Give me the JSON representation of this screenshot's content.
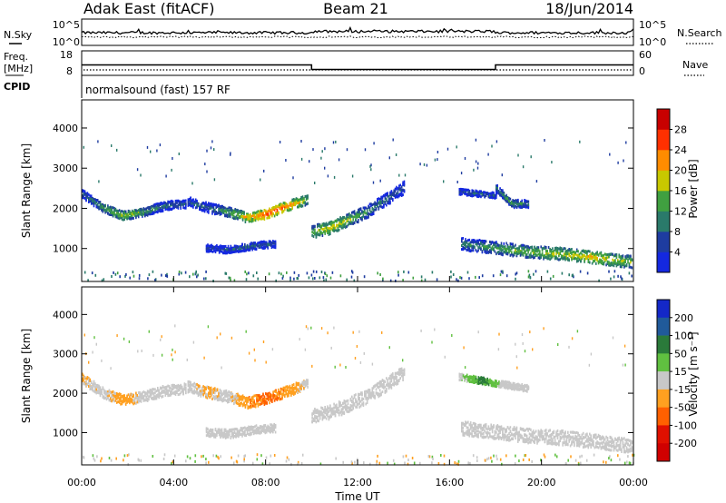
{
  "header": {
    "station": "Adak East (fitACF)",
    "beam": "Beam 21",
    "date": "18/Jun/2014"
  },
  "summary": {
    "nsky_label": "N.Sky",
    "nsearch_label": "N.Search",
    "freq_label": "Freq.",
    "freq_unit": "[MHz]",
    "nave_label": "Nave",
    "cpid_label": "CPID",
    "cpid_text": "normalsound (fast) 157 RF",
    "noise_ticks": [
      "10^5",
      "10^0"
    ],
    "freq_ticks": [
      "18",
      "8"
    ],
    "nave_ticks": [
      "60",
      "0"
    ],
    "freq_segments": [
      {
        "start_h": 0,
        "end_h": 10,
        "mhz": 12.2
      },
      {
        "start_h": 10,
        "end_h": 18,
        "mhz": 10.2
      },
      {
        "start_h": 18,
        "end_h": 24,
        "mhz": 12.2
      }
    ],
    "nave_level": 12,
    "nsky_level_log": 2.4,
    "nsearch_level_log": 1.6
  },
  "chart_data": [
    {
      "type": "heatmap",
      "panel": "power",
      "ylabel": "Slant Range [km]",
      "xlabel": "",
      "xlim_hours": [
        0,
        24
      ],
      "ylim_km": [
        180,
        4700
      ],
      "yticks": [
        1000,
        2000,
        3000,
        4000
      ],
      "colorbar_label": "Power [dB]",
      "colorbar_ticks": [
        4,
        8,
        12,
        16,
        20,
        24,
        28
      ],
      "colorbar_colors": [
        "#1428e0",
        "#1e3ca0",
        "#2a7a6a",
        "#40a040",
        "#c8c800",
        "#ff8c00",
        "#ff3000",
        "#c80000"
      ],
      "echo_bands": [
        {
          "start_h": 0.0,
          "end_h": 4.5,
          "range_km": [
            2350,
            2000,
            1800,
            1900,
            2050,
            2100
          ],
          "width_km": 180,
          "power_db": [
            8,
            14,
            18,
            14,
            10,
            8
          ]
        },
        {
          "start_h": 4.6,
          "end_h": 9.8,
          "range_km": [
            2150,
            2000,
            1900,
            1750,
            1850,
            2050,
            2200
          ],
          "width_km": 200,
          "power_db": [
            8,
            10,
            14,
            20,
            26,
            24,
            16
          ]
        },
        {
          "start_h": 10.0,
          "end_h": 14.0,
          "range_km": [
            1400,
            1500,
            1700,
            1900,
            2200,
            2500
          ],
          "width_km": 260,
          "power_db": [
            16,
            20,
            16,
            12,
            10,
            8
          ]
        },
        {
          "start_h": 5.4,
          "end_h": 8.4,
          "range_km": [
            1000,
            950,
            1050,
            1100
          ],
          "width_km": 150,
          "power_db": [
            6,
            8,
            10,
            8
          ]
        },
        {
          "start_h": 16.5,
          "end_h": 23.9,
          "range_km": [
            1100,
            1000,
            900,
            850,
            750,
            650
          ],
          "width_km": 250,
          "power_db": [
            10,
            14,
            16,
            18,
            20,
            16
          ]
        },
        {
          "start_h": 16.4,
          "end_h": 18.0,
          "range_km": [
            2400,
            2350,
            2300
          ],
          "width_km": 120,
          "power_db": [
            8,
            10,
            8
          ]
        },
        {
          "start_h": 18.0,
          "end_h": 19.4,
          "range_km": [
            2500,
            2100,
            2100
          ],
          "width_km": 160,
          "power_db": [
            12,
            14,
            10
          ]
        }
      ]
    },
    {
      "type": "heatmap",
      "panel": "velocity",
      "ylabel": "Slant Range [km]",
      "xlabel": "Time UT",
      "xlim_hours": [
        0,
        24
      ],
      "ylim_km": [
        180,
        4700
      ],
      "yticks": [
        1000,
        2000,
        3000,
        4000
      ],
      "xticks": [
        "00:00",
        "04:00",
        "08:00",
        "12:00",
        "16:00",
        "20:00",
        "00:00"
      ],
      "colorbar_label": "Velocity [m s⁻¹]",
      "colorbar_ticks": [
        200,
        100,
        50,
        15,
        -15,
        -50,
        -100,
        -200
      ],
      "colorbar_colors": [
        "#1428c8",
        "#205a9a",
        "#2a7a3a",
        "#60c040",
        "#c8c8c8",
        "#ffa020",
        "#ff6000",
        "#e01000",
        "#d00000"
      ],
      "echo_bands": [
        {
          "start_h": 0.0,
          "end_h": 4.5,
          "range_km": [
            2350,
            2000,
            1800,
            1900,
            2050,
            2100
          ],
          "width_km": 220,
          "velocity_ms": [
            -20,
            0,
            -30,
            0,
            0,
            0
          ]
        },
        {
          "start_h": 4.6,
          "end_h": 9.8,
          "range_km": [
            2150,
            2000,
            1900,
            1750,
            1850,
            2050,
            2200
          ],
          "width_km": 240,
          "velocity_ms": [
            0,
            -20,
            0,
            -40,
            -60,
            -40,
            0
          ]
        },
        {
          "start_h": 10.0,
          "end_h": 14.0,
          "range_km": [
            1400,
            1500,
            1700,
            1900,
            2200,
            2500
          ],
          "width_km": 300,
          "velocity_ms": [
            0,
            0,
            0,
            0,
            0,
            0
          ]
        },
        {
          "start_h": 5.4,
          "end_h": 8.4,
          "range_km": [
            1000,
            950,
            1050,
            1100
          ],
          "width_km": 180,
          "velocity_ms": [
            0,
            0,
            0,
            0
          ]
        },
        {
          "start_h": 16.5,
          "end_h": 23.9,
          "range_km": [
            1100,
            1000,
            900,
            850,
            750,
            650
          ],
          "width_km": 300,
          "velocity_ms": [
            0,
            0,
            0,
            0,
            0,
            0
          ]
        },
        {
          "start_h": 16.4,
          "end_h": 19.4,
          "range_km": [
            2400,
            2300,
            2200,
            2100
          ],
          "width_km": 140,
          "velocity_ms": [
            0,
            60,
            0,
            0
          ]
        }
      ]
    }
  ]
}
